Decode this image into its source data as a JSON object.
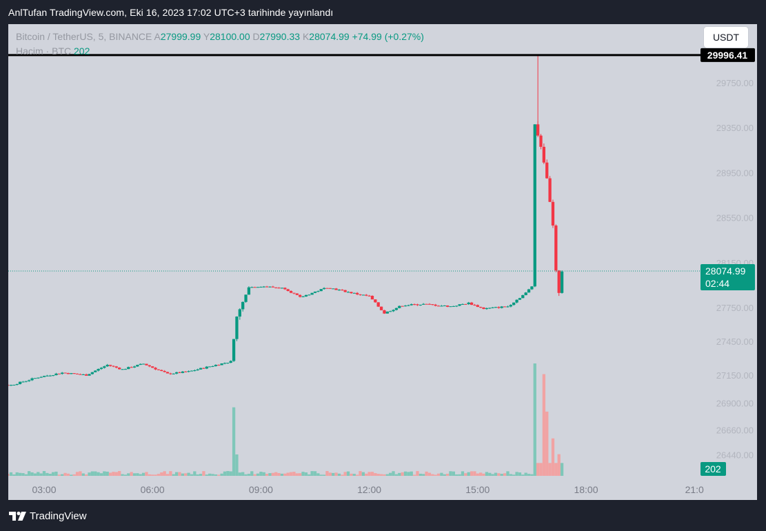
{
  "header": {
    "published": "AnlTufan TradingView.com, Eki 16, 2023 17:02 UTC+3 tarihinde yayınlandı"
  },
  "legend": {
    "symbol": "Bitcoin / TetherUS, 5, BINANCE",
    "open_key": "A",
    "open": "27999.99",
    "high_key": "Y",
    "high": "28100.00",
    "low_key": "D",
    "low": "27990.33",
    "close_key": "K",
    "close": "28074.99",
    "change": "+74.99 (+0.27%)",
    "volume_label": "Hacim · BTC",
    "volume_value": "202"
  },
  "currency_button": "USDT",
  "price_labels": {
    "high_marker": "29996.41",
    "last_price": "28074.99",
    "countdown": "02:44",
    "volume": "202"
  },
  "brand": {
    "name": "TradingView"
  },
  "colors": {
    "up": "#089981",
    "down": "#f23645",
    "up_volume": "#7fc7b9",
    "down_volume": "#f1a3a3",
    "background": "#d1d4dc"
  },
  "chart_data": {
    "type": "candlestick",
    "interval": "5",
    "y_ticks": [
      "29750.00",
      "29350.00",
      "28950.00",
      "28550.00",
      "28150.00",
      "27750.00",
      "27450.00",
      "27150.00",
      "26900.00",
      "26660.00",
      "26440.00"
    ],
    "x_ticks": [
      "03:00",
      "06:00",
      "09:00",
      "12:00",
      "15:00",
      "18:00",
      "21:0"
    ],
    "series": [
      {
        "name": "price",
        "anchors": [
          {
            "t": "01:05",
            "price": 27080
          },
          {
            "t": "02:05",
            "price": 27060
          },
          {
            "t": "02:50",
            "price": 27130
          },
          {
            "t": "03:30",
            "price": 27170
          },
          {
            "t": "04:10",
            "price": 27150
          },
          {
            "t": "04:45",
            "price": 27240
          },
          {
            "t": "05:10",
            "price": 27200
          },
          {
            "t": "05:45",
            "price": 27250
          },
          {
            "t": "06:25",
            "price": 27160
          },
          {
            "t": "07:00",
            "price": 27180
          },
          {
            "t": "07:30",
            "price": 27220
          },
          {
            "t": "08:10",
            "price": 27270
          },
          {
            "t": "08:20",
            "price": 27670
          },
          {
            "t": "08:40",
            "price": 27930
          },
          {
            "t": "09:00",
            "price": 27940
          },
          {
            "t": "09:40",
            "price": 27920
          },
          {
            "t": "10:05",
            "price": 27840
          },
          {
            "t": "10:50",
            "price": 27930
          },
          {
            "t": "11:40",
            "price": 27870
          },
          {
            "t": "12:00",
            "price": 27850
          },
          {
            "t": "12:25",
            "price": 27700
          },
          {
            "t": "12:55",
            "price": 27770
          },
          {
            "t": "13:30",
            "price": 27780
          },
          {
            "t": "14:15",
            "price": 27760
          },
          {
            "t": "14:45",
            "price": 27790
          },
          {
            "t": "15:10",
            "price": 27740
          },
          {
            "t": "15:50",
            "price": 27760
          },
          {
            "t": "16:05",
            "price": 27820
          },
          {
            "t": "16:20",
            "price": 27880
          },
          {
            "t": "16:30",
            "price": 27940
          },
          {
            "t": "16:35",
            "price": 29380
          },
          {
            "t": "16:45",
            "price": 29180
          },
          {
            "t": "16:55",
            "price": 28900
          },
          {
            "t": "17:05",
            "price": 28480
          },
          {
            "t": "17:10",
            "price": 28080
          },
          {
            "t": "17:15",
            "price": 27880
          },
          {
            "t": "17:20",
            "price": 28070
          }
        ]
      },
      {
        "name": "volume",
        "spikes": [
          {
            "t": "08:15",
            "volume": 640
          },
          {
            "t": "08:20",
            "volume": 200
          },
          {
            "t": "16:35",
            "volume": 1050
          },
          {
            "t": "16:50",
            "volume": 950
          },
          {
            "t": "16:55",
            "volume": 600
          },
          {
            "t": "17:05",
            "volume": 350
          },
          {
            "t": "17:15",
            "volume": 202
          }
        ]
      }
    ],
    "extremes": {
      "high": 29996.41,
      "last": 28074.99
    },
    "legend_position": "top-left",
    "grid": false
  }
}
